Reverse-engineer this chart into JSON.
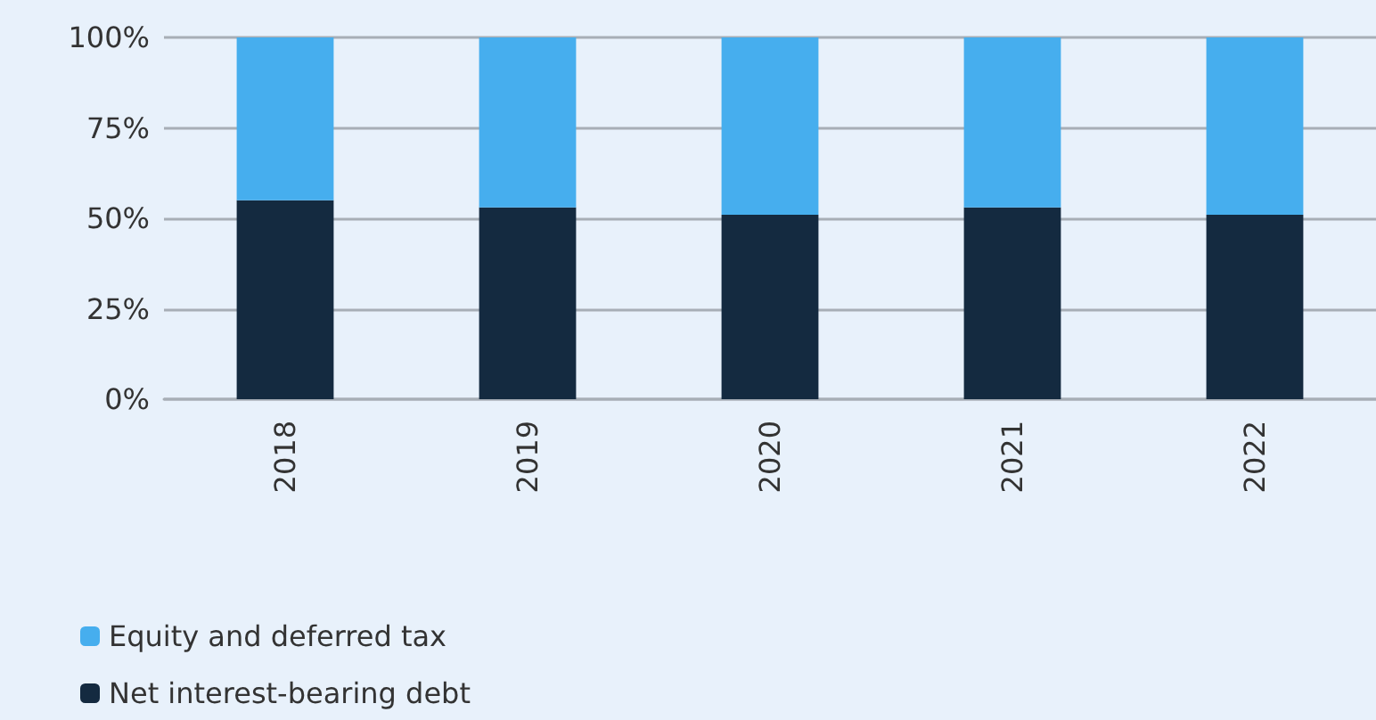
{
  "chart_data": {
    "type": "bar",
    "stacked": true,
    "categories": [
      "2018",
      "2019",
      "2020",
      "2021",
      "2022"
    ],
    "series": [
      {
        "name": "Net interest-bearing debt",
        "color": "#142a40",
        "values": [
          55,
          53,
          51,
          53,
          51
        ]
      },
      {
        "name": "Equity and deferred tax",
        "color": "#46aeee",
        "values": [
          45,
          47,
          49,
          47,
          49
        ]
      }
    ],
    "ylim": [
      0,
      100
    ],
    "yticks": [
      {
        "value": 0,
        "label": "0%"
      },
      {
        "value": 25,
        "label": "25%"
      },
      {
        "value": 50,
        "label": "50%"
      },
      {
        "value": 75,
        "label": "75%"
      },
      {
        "value": 100,
        "label": "100%"
      }
    ],
    "grid": "y",
    "legend": "bottom left"
  }
}
